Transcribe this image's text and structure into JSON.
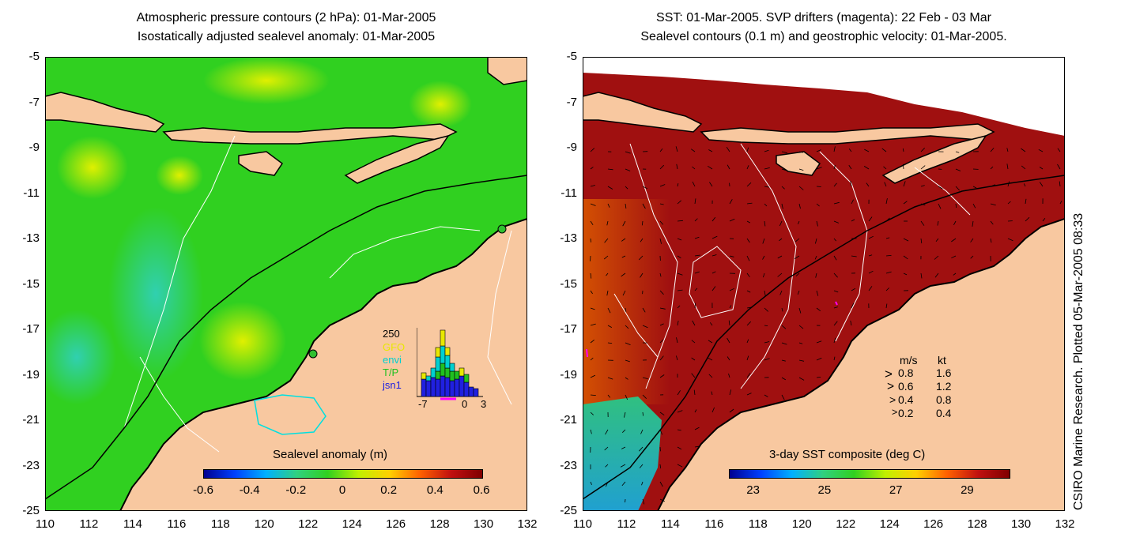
{
  "left_panel": {
    "title_line1": "Atmospheric pressure contours (2 hPa): 01-Mar-2005",
    "title_line2": "Isostatically adjusted sealevel anomaly: 01-Mar-2005",
    "colorbar_title": "Sealevel anomaly (m)",
    "colorbar_ticks": [
      "-0.6",
      "-0.4",
      "-0.2",
      "0",
      "0.2",
      "0.4",
      "0.6"
    ],
    "histogram": {
      "ymax_label": "250",
      "legend": [
        {
          "label": "GFO",
          "color": "#e8e800"
        },
        {
          "label": "envi",
          "color": "#00d0d0"
        },
        {
          "label": "T/P",
          "color": "#20c020"
        },
        {
          "label": "jsn1",
          "color": "#2020e0"
        }
      ],
      "x_ticks": [
        "-7",
        "0",
        "3"
      ]
    }
  },
  "right_panel": {
    "title_line1": "SST: 01-Mar-2005. SVP drifters (magenta): 22 Feb - 03 Mar",
    "title_line2": "Sealevel contours (0.1 m) and geostrophic velocity: 01-Mar-2005.",
    "colorbar_title": "3-day SST composite (deg C)",
    "colorbar_ticks": [
      "23",
      "25",
      "27",
      "29"
    ],
    "velocity_legend": {
      "header_ms": "m/s",
      "header_kt": "kt",
      "rows": [
        {
          "ms": "0.8",
          "kt": "1.6"
        },
        {
          "ms": "0.6",
          "kt": "1.2"
        },
        {
          "ms": "0.4",
          "kt": "0.8"
        },
        {
          "ms": "0.2",
          "kt": "0.4"
        }
      ]
    }
  },
  "axes": {
    "y_ticks": [
      "-5",
      "-7",
      "-9",
      "-11",
      "-13",
      "-15",
      "-17",
      "-19",
      "-21",
      "-23",
      "-25"
    ],
    "x_ticks": [
      "110",
      "112",
      "114",
      "116",
      "118",
      "120",
      "122",
      "124",
      "126",
      "128",
      "130",
      "132"
    ]
  },
  "credit": "CSIRO Marine Research. Plotted 05-Mar-2005 08:33",
  "colors": {
    "land": "#f8c8a0",
    "ocean_left": "#30d020",
    "ocean_right": "#a01010"
  }
}
